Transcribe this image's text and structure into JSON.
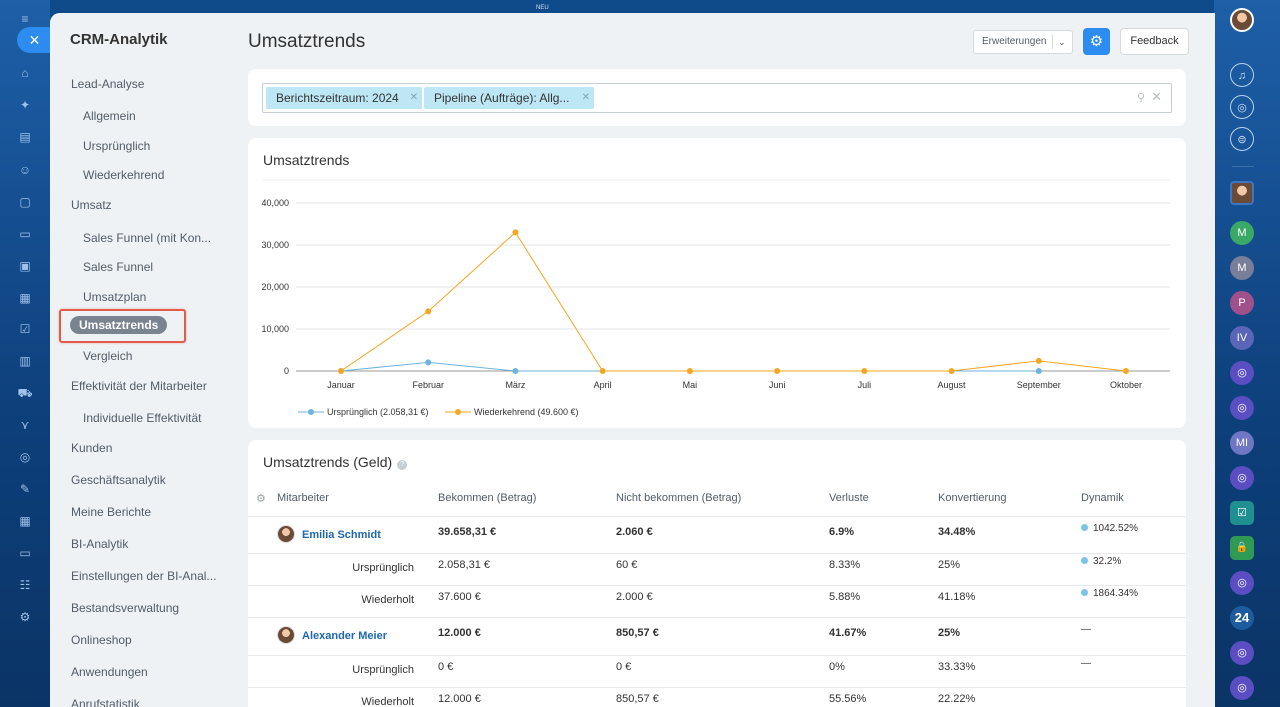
{
  "top": {
    "badge_new": "NEU"
  },
  "left_rail": {
    "icons": [
      "menu-icon",
      "home-icon",
      "puzzle-icon",
      "document-icon",
      "contacts-icon",
      "file-icon",
      "card-icon",
      "monitor-icon",
      "calendar-icon",
      "checkbox-icon",
      "analytics-icon",
      "cart-icon",
      "funnel-icon",
      "target-icon",
      "pen-icon",
      "building-icon",
      "chat-icon",
      "team-icon",
      "settings-icon"
    ]
  },
  "sidebar": {
    "title": "CRM-Analytik",
    "items": [
      {
        "label": "Lead-Analyse",
        "level": "top"
      },
      {
        "label": "Allgemein",
        "level": "sub"
      },
      {
        "label": "Ursprünglich",
        "level": "sub"
      },
      {
        "label": "Wiederkehrend",
        "level": "sub"
      },
      {
        "label": "Umsatz",
        "level": "top"
      },
      {
        "label": "Sales Funnel (mit Kon...",
        "level": "sub"
      },
      {
        "label": "Sales Funnel",
        "level": "sub"
      },
      {
        "label": "Umsatzplan",
        "level": "sub"
      },
      {
        "label": "Umsatztrends",
        "level": "sub",
        "active": true
      },
      {
        "label": "Vergleich",
        "level": "sub"
      },
      {
        "label": "Effektivität der Mitarbeiter",
        "level": "top"
      },
      {
        "label": "Individuelle Effektivität",
        "level": "sub"
      },
      {
        "label": "Kunden",
        "level": "top"
      },
      {
        "label": "Geschäftsanalytik",
        "level": "top"
      },
      {
        "label": "Meine Berichte",
        "level": "top"
      },
      {
        "label": "BI-Analytik",
        "level": "top"
      },
      {
        "label": "Einstellungen der BI-Anal...",
        "level": "top"
      },
      {
        "label": "Bestandsverwaltung",
        "level": "top"
      },
      {
        "label": "Onlineshop",
        "level": "top"
      },
      {
        "label": "Anwendungen",
        "level": "top"
      },
      {
        "label": "Anrufstatistik",
        "level": "top"
      }
    ]
  },
  "header": {
    "title": "Umsatztrends",
    "extensions_label": "Erweiterungen",
    "feedback_label": "Feedback"
  },
  "filter": {
    "chips": [
      "Berichtszeitraum: 2024",
      "Pipeline (Aufträge): Allg..."
    ]
  },
  "chart_card": {
    "title": "Umsatztrends"
  },
  "chart_data": {
    "type": "line",
    "categories": [
      "Januar",
      "Februar",
      "März",
      "April",
      "Mai",
      "Juni",
      "Juli",
      "August",
      "September",
      "Oktober"
    ],
    "series": [
      {
        "name": "Ursprünglich (2.058,31 €)",
        "color": "#6fb3e0",
        "values": [
          0,
          2058.31,
          0,
          null,
          null,
          null,
          null,
          null,
          0,
          null
        ]
      },
      {
        "name": "Wiederkehrend (49.600 €)",
        "color": "#f5a623",
        "values": [
          0,
          14200,
          33000,
          0,
          0,
          0,
          0,
          0,
          2400,
          0
        ]
      }
    ],
    "y_ticks": [
      "0",
      "10,000",
      "20,000",
      "30,000",
      "40,000"
    ],
    "ylim": [
      0,
      40000
    ],
    "grid": true,
    "legend": "bottom-left"
  },
  "table": {
    "title": "Umsatztrends (Geld)",
    "headers": [
      "Mitarbeiter",
      "Bekommen (Betrag)",
      "Nicht bekommen (Betrag)",
      "Verluste",
      "Konvertierung",
      "Dynamik"
    ],
    "rows": [
      {
        "type": "person",
        "name": "Emilia Schmidt",
        "received": "39.658,31 €",
        "not_received": "2.060 €",
        "losses": "6.9%",
        "conversion": "34.48%",
        "dynamics": "1042.52%",
        "dot": true
      },
      {
        "type": "sub",
        "name": "Ursprünglich",
        "received": "2.058,31 €",
        "not_received": "60 €",
        "losses": "8.33%",
        "conversion": "25%",
        "dynamics": "32.2%",
        "dot": true
      },
      {
        "type": "sub",
        "name": "Wiederholt",
        "received": "37.600 €",
        "not_received": "2.000 €",
        "losses": "5.88%",
        "conversion": "41.18%",
        "dynamics": "1864.34%",
        "dot": true
      },
      {
        "type": "person",
        "name": "Alexander Meier",
        "received": "12.000 €",
        "not_received": "850,57 €",
        "losses": "41.67%",
        "conversion": "25%",
        "dynamics": "—",
        "dot": false
      },
      {
        "type": "sub",
        "name": "Ursprünglich",
        "received": "0 €",
        "not_received": "0 €",
        "losses": "0%",
        "conversion": "33.33%",
        "dynamics": "—",
        "dot": false
      },
      {
        "type": "sub",
        "name": "Wiederholt",
        "received": "12.000 €",
        "not_received": "850,57 €",
        "losses": "55.56%",
        "conversion": "22.22%",
        "dynamics": "",
        "dot": false
      }
    ]
  },
  "right_rail": {
    "items": [
      {
        "icon": "bell-icon",
        "letter": ""
      },
      {
        "icon": "channel-icon",
        "letter": ""
      },
      {
        "icon": "search-chat-icon",
        "letter": ""
      },
      {
        "icon": "avatar",
        "letter": ""
      },
      {
        "icon": "user-m-icon",
        "letter": "M",
        "color": "#3aa866"
      },
      {
        "icon": "user-m-icon",
        "letter": "M",
        "color": "#7a7f99"
      },
      {
        "icon": "user-p-icon",
        "letter": "P",
        "color": "#a0508a"
      },
      {
        "icon": "user-iv-icon",
        "letter": "IV",
        "color": "#5b66b8"
      },
      {
        "icon": "openline-icon",
        "letter": "",
        "color": "#5b4ec2"
      },
      {
        "icon": "openline-icon",
        "letter": "",
        "color": "#5b4ec2"
      },
      {
        "icon": "user-mi-icon",
        "letter": "MI",
        "color": "#6f76c4"
      },
      {
        "icon": "openline-icon",
        "letter": "",
        "color": "#5b4ec2"
      },
      {
        "icon": "task-icon",
        "letter": "",
        "color": "#1f8f8f"
      },
      {
        "icon": "lock-icon",
        "letter": "",
        "color": "#2f9a54"
      },
      {
        "icon": "openline-icon",
        "letter": "",
        "color": "#5b4ec2"
      },
      {
        "icon": "bitrix24-icon",
        "letter": "24",
        "color": "#1d5d9e"
      },
      {
        "icon": "openline-icon",
        "letter": "",
        "color": "#5b4ec2"
      },
      {
        "icon": "openline-icon",
        "letter": "",
        "color": "#5b4ec2"
      }
    ]
  }
}
